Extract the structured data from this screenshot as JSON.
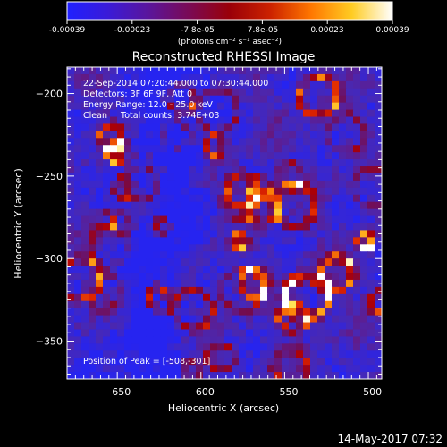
{
  "colorbar": {
    "ticks": [
      "-0.00039",
      "-0.00023",
      "-7.8e-05",
      "7.8e-05",
      "0.00023",
      "0.00039"
    ],
    "units": "(photons cm⁻² s⁻¹ asec⁻²)",
    "stops": [
      "#2020ff",
      "#3a1bd8",
      "#5a159c",
      "#7a0a55",
      "#9a0008",
      "#cc2200",
      "#ff7700",
      "#ffcc22",
      "#ffffff"
    ]
  },
  "chart_data": {
    "type": "heatmap",
    "title": "Reconstructed RHESSI Image",
    "xlabel": "Heliocentric X (arcsec)",
    "ylabel": "Heliocentric Y (arcsec)",
    "xlim": [
      -680,
      -492
    ],
    "ylim": [
      -373,
      -184
    ],
    "x_ticks": [
      -650,
      -600,
      -550,
      -500
    ],
    "y_ticks": [
      -200,
      -250,
      -300,
      -350
    ],
    "x_tick_labels": [
      "−650",
      "−600",
      "−550",
      "−500"
    ],
    "y_tick_labels": [
      "−200",
      "−250",
      "−300",
      "−350"
    ],
    "peak": {
      "x": -508,
      "y": -301
    },
    "annotations": [
      "22-Sep-2014 07:20:44.000 to 07:30:44.000",
      "Detectors: 3F 6F 9F, Att 0",
      "Energy Range: 12.0 - 25.0 keV",
      "Clean     Total counts: 3.74E+03",
      "Position of Peak = [-508,-301]"
    ],
    "grid": false
  },
  "footer": {
    "date": "14-May-2017 07:32"
  }
}
